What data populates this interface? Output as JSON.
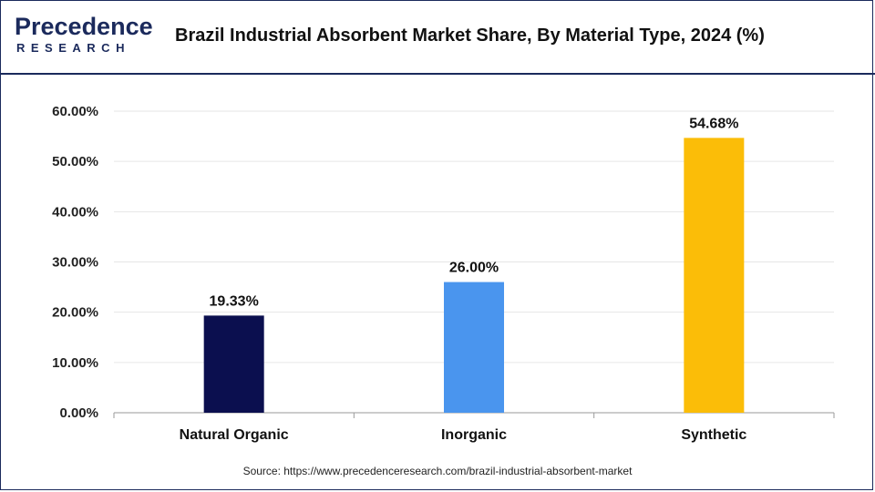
{
  "brand": {
    "logo_main": "Precedence",
    "logo_sub": "RESEARCH"
  },
  "chart_data": {
    "type": "bar",
    "title": "Brazil Industrial Absorbent Market Share, By Material Type, 2024 (%)",
    "categories": [
      "Natural Organic",
      "Inorganic",
      "Synthetic"
    ],
    "values": [
      19.33,
      26.0,
      54.68
    ],
    "data_labels": [
      "19.33%",
      "26.00%",
      "54.68%"
    ],
    "colors": [
      "#0b0f4f",
      "#4a95ee",
      "#fbbd08"
    ],
    "ylim": [
      0,
      60
    ],
    "yticks": [
      "0.00%",
      "10.00%",
      "20.00%",
      "30.00%",
      "40.00%",
      "50.00%",
      "60.00%"
    ],
    "ytick_values": [
      0,
      10,
      20,
      30,
      40,
      50,
      60
    ],
    "grid": true,
    "xlabel": "",
    "ylabel": ""
  },
  "source": "Source: https://www.precedenceresearch.com/brazil-industrial-absorbent-market"
}
